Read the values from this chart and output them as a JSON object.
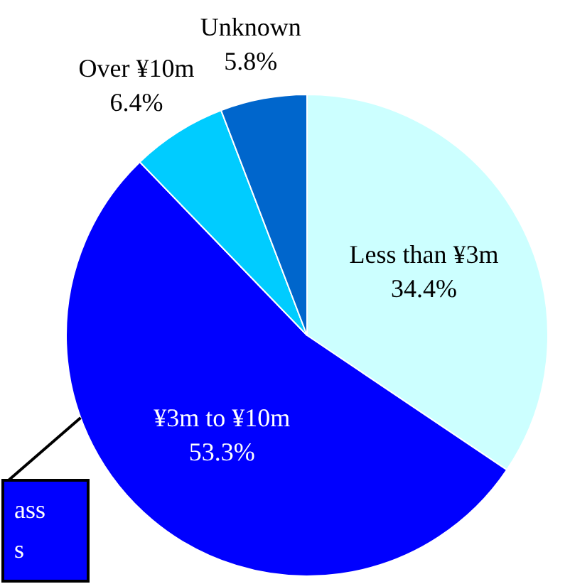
{
  "chart_data": {
    "type": "pie",
    "categories": [
      "Less than ¥3m",
      "¥3m to ¥10m",
      "Over ¥10m",
      "Unknown"
    ],
    "values": [
      34.4,
      53.3,
      6.4,
      5.8
    ],
    "colors": [
      "#ccffff",
      "#0000ff",
      "#00ccff",
      "#0066cc"
    ],
    "value_labels": [
      "34.4%",
      "53.3%",
      "6.4%",
      "5.8%"
    ],
    "legend": false,
    "annotations": [
      "ass",
      "s"
    ]
  }
}
